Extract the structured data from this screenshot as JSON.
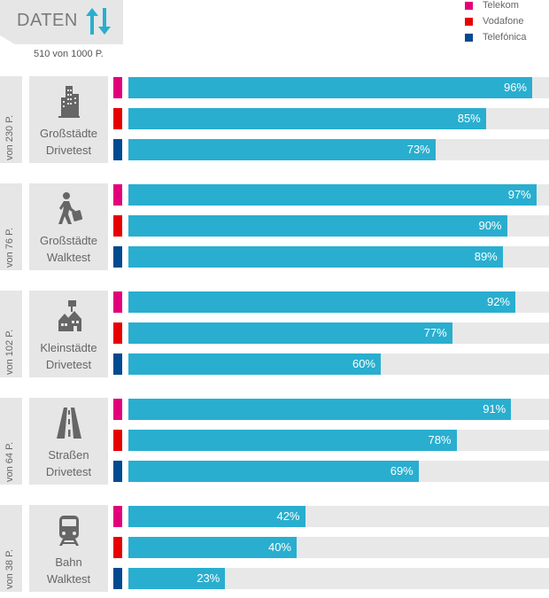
{
  "header": {
    "title": "DATEN",
    "subtitle": "510 von 1000 P."
  },
  "colors": {
    "telekom": "#e2007a",
    "vodafone": "#e60000",
    "telefonica": "#004a8f",
    "bar": "#29aecf",
    "track": "#e8e8e8",
    "panel": "#e6e6e6"
  },
  "chart_data": {
    "type": "bar",
    "orientation": "horizontal",
    "title": "DATEN",
    "subtitle": "510 von 1000 P.",
    "legend": [
      "Telekom",
      "Vodafone",
      "Telefónica"
    ],
    "legend_position": "top-right",
    "xlim": [
      0,
      100
    ],
    "unit": "%",
    "groups": [
      {
        "points": "von 230 P.",
        "line1": "Großstädte",
        "line2": "Drivetest",
        "icon": "city-icon",
        "values": [
          96,
          85,
          73
        ],
        "labels": [
          "96%",
          "85%",
          "73%"
        ]
      },
      {
        "points": "von 76 P.",
        "line1": "Großstädte",
        "line2": "Walktest",
        "icon": "walker-icon",
        "values": [
          97,
          90,
          89
        ],
        "labels": [
          "97%",
          "90%",
          "89%"
        ]
      },
      {
        "points": "von 102 P.",
        "line1": "Kleinstädte",
        "line2": "Drivetest",
        "icon": "town-icon",
        "values": [
          92,
          77,
          60
        ],
        "labels": [
          "92%",
          "77%",
          "60%"
        ]
      },
      {
        "points": "von 64 P.",
        "line1": "Straßen",
        "line2": "Drivetest",
        "icon": "road-icon",
        "values": [
          91,
          78,
          69
        ],
        "labels": [
          "91%",
          "78%",
          "69%"
        ]
      },
      {
        "points": "von 38 P.",
        "line1": "Bahn",
        "line2": "Walktest",
        "icon": "train-icon",
        "values": [
          42,
          40,
          23
        ],
        "labels": [
          "42%",
          "40%",
          "23%"
        ]
      }
    ]
  }
}
